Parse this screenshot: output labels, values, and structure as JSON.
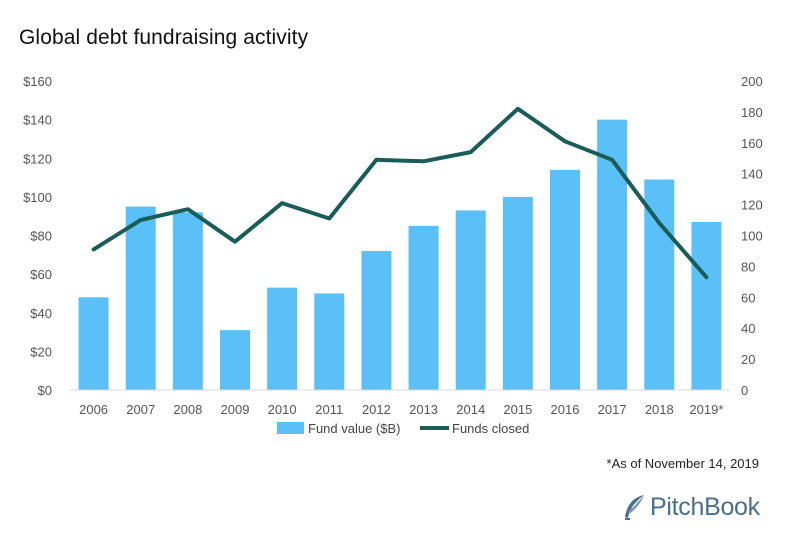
{
  "chart_data": {
    "type": "bar+line",
    "title": "Global debt fundraising activity",
    "categories": [
      "2006",
      "2007",
      "2008",
      "2009",
      "2010",
      "2011",
      "2012",
      "2013",
      "2014",
      "2015",
      "2016",
      "2017",
      "2018",
      "2019*"
    ],
    "series": [
      {
        "name": "Fund value ($B)",
        "type": "bar",
        "axis": "left",
        "color": "#5bc0f8",
        "values": [
          48,
          95,
          92,
          31,
          53,
          50,
          72,
          85,
          93,
          100,
          114,
          140,
          109,
          87
        ]
      },
      {
        "name": "Funds closed",
        "type": "line",
        "axis": "right",
        "color": "#1a5c57",
        "values": [
          91,
          110,
          117,
          96,
          121,
          111,
          149,
          148,
          154,
          182,
          161,
          149,
          108,
          73
        ]
      }
    ],
    "y_left": {
      "min": 0,
      "max": 160,
      "ticks": [
        "$0",
        "$20",
        "$40",
        "$60",
        "$80",
        "$100",
        "$120",
        "$140",
        "$160"
      ]
    },
    "y_right": {
      "min": 0,
      "max": 200,
      "ticks": [
        "0",
        "20",
        "40",
        "60",
        "80",
        "100",
        "120",
        "140",
        "160",
        "180",
        "200"
      ]
    },
    "grid": false,
    "legend_position": "bottom"
  },
  "footnote": "*As of November 14, 2019",
  "logo": {
    "text": "PitchBook",
    "color": "#4a6f8d"
  }
}
